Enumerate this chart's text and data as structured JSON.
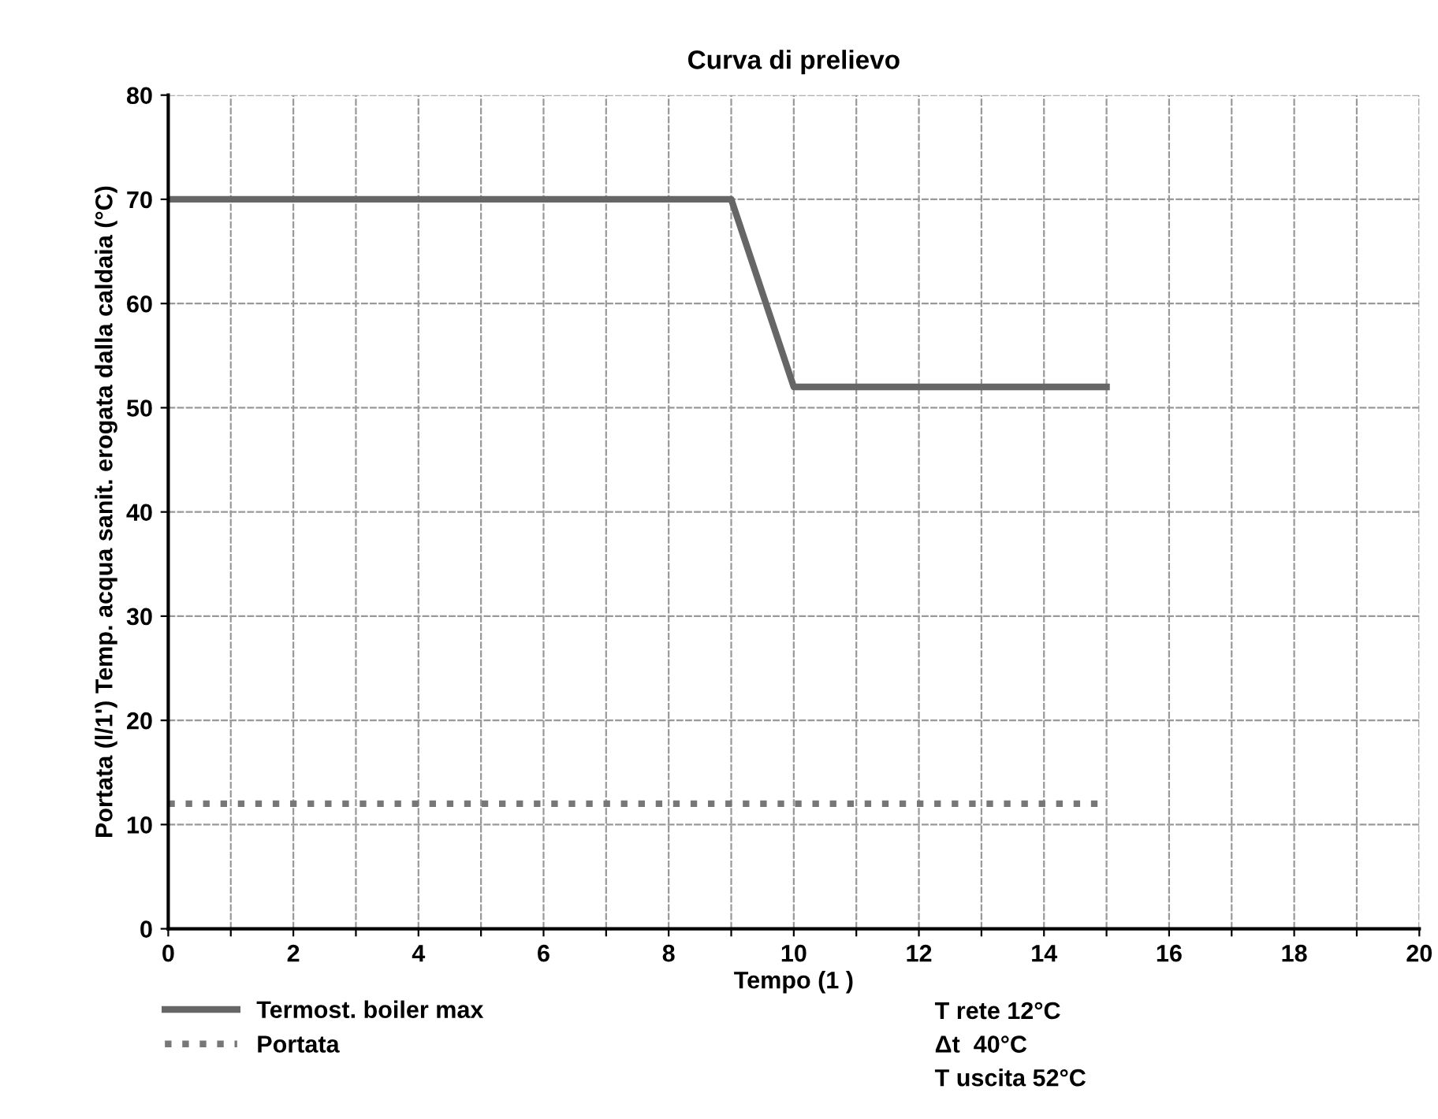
{
  "chart_data": {
    "type": "line",
    "title": "Curva di prelievo",
    "xlabel": "Tempo (1 )",
    "ylabel": "Portata (l/1') Temp. acqua sanit. erogata dalla caldaia (°C)",
    "series": [
      {
        "name": "Termost. boiler max",
        "color": "#666666",
        "line_style": "solid",
        "x": [
          0,
          9,
          9.5,
          10,
          15
        ],
        "values": [
          70,
          70,
          61,
          52,
          52
        ]
      },
      {
        "name": "Portata",
        "color": "#777777",
        "line_style": "dotted",
        "x": [
          0,
          15
        ],
        "values": [
          12,
          12
        ]
      }
    ],
    "xlim": [
      0,
      20
    ],
    "xticks": [
      0,
      {
        "value": 1,
        "label": null
      },
      2,
      {
        "value": 3,
        "label": null
      },
      4,
      {
        "value": 5,
        "label": null
      },
      6,
      {
        "value": 7,
        "label": null
      },
      8,
      {
        "value": 9,
        "label": null
      },
      10,
      {
        "value": 11,
        "label": null
      },
      12,
      {
        "value": 13,
        "label": null
      },
      14,
      {
        "value": 15,
        "label": null
      },
      16,
      {
        "value": 17,
        "label": null
      },
      18,
      {
        "value": 19,
        "label": null
      },
      20
    ],
    "ylim": [
      0,
      80
    ],
    "yticks": [
      0,
      10,
      20,
      30,
      40,
      50,
      60,
      70,
      80
    ],
    "grid": true,
    "legend": "bottom left",
    "marker": "none",
    "annotations": [
      "T rete 12°C",
      "Δt  40°C",
      "T uscita 52°C"
    ]
  }
}
